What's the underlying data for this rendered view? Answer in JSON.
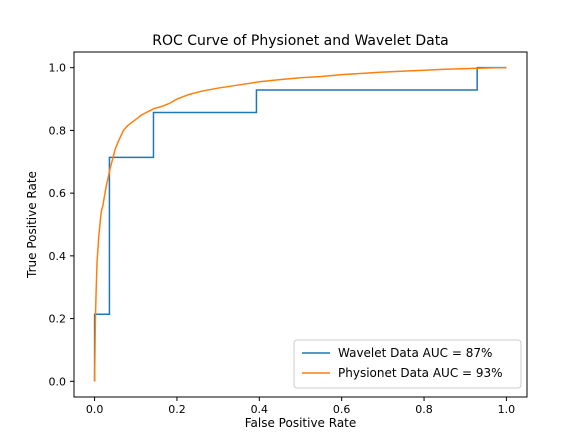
{
  "chart_data": {
    "type": "line",
    "title": "ROC Curve of Physionet and Wavelet Data",
    "xlabel": "False Positive Rate",
    "ylabel": "True Positive Rate",
    "xlim": [
      -0.05,
      1.05
    ],
    "ylim": [
      -0.05,
      1.05
    ],
    "xticks": [
      "0.0",
      "0.2",
      "0.4",
      "0.6",
      "0.8",
      "1.0"
    ],
    "yticks": [
      "0.0",
      "0.2",
      "0.4",
      "0.6",
      "0.8",
      "1.0"
    ],
    "grid": false,
    "legend_position": "lower-right",
    "series": [
      {
        "name": "Wavelet Data AUC = 87%",
        "color": "#1f77b4",
        "step": true,
        "x": [
          0.0,
          0.0,
          0.036,
          0.036,
          0.143,
          0.143,
          0.393,
          0.393,
          0.929,
          0.929,
          1.0
        ],
        "y": [
          0.0,
          0.214,
          0.214,
          0.714,
          0.714,
          0.857,
          0.857,
          0.929,
          0.929,
          1.0,
          1.0
        ]
      },
      {
        "name": "Physionet Data AUC = 93%",
        "color": "#ff7f0e",
        "step": false,
        "x": [
          0.0,
          0.002,
          0.004,
          0.006,
          0.008,
          0.01,
          0.013,
          0.016,
          0.02,
          0.024,
          0.028,
          0.033,
          0.038,
          0.044,
          0.05,
          0.056,
          0.063,
          0.07,
          0.08,
          0.09,
          0.1,
          0.115,
          0.13,
          0.145,
          0.16,
          0.18,
          0.2,
          0.23,
          0.26,
          0.3,
          0.35,
          0.4,
          0.45,
          0.5,
          0.55,
          0.6,
          0.65,
          0.7,
          0.75,
          0.8,
          0.85,
          0.9,
          0.95,
          1.0
        ],
        "y": [
          0.0,
          0.2,
          0.3,
          0.38,
          0.42,
          0.46,
          0.5,
          0.54,
          0.56,
          0.59,
          0.62,
          0.65,
          0.68,
          0.71,
          0.74,
          0.76,
          0.78,
          0.8,
          0.815,
          0.825,
          0.835,
          0.85,
          0.86,
          0.87,
          0.875,
          0.885,
          0.9,
          0.915,
          0.925,
          0.935,
          0.945,
          0.955,
          0.962,
          0.968,
          0.972,
          0.978,
          0.982,
          0.986,
          0.989,
          0.992,
          0.995,
          0.997,
          0.999,
          1.0
        ]
      }
    ]
  }
}
